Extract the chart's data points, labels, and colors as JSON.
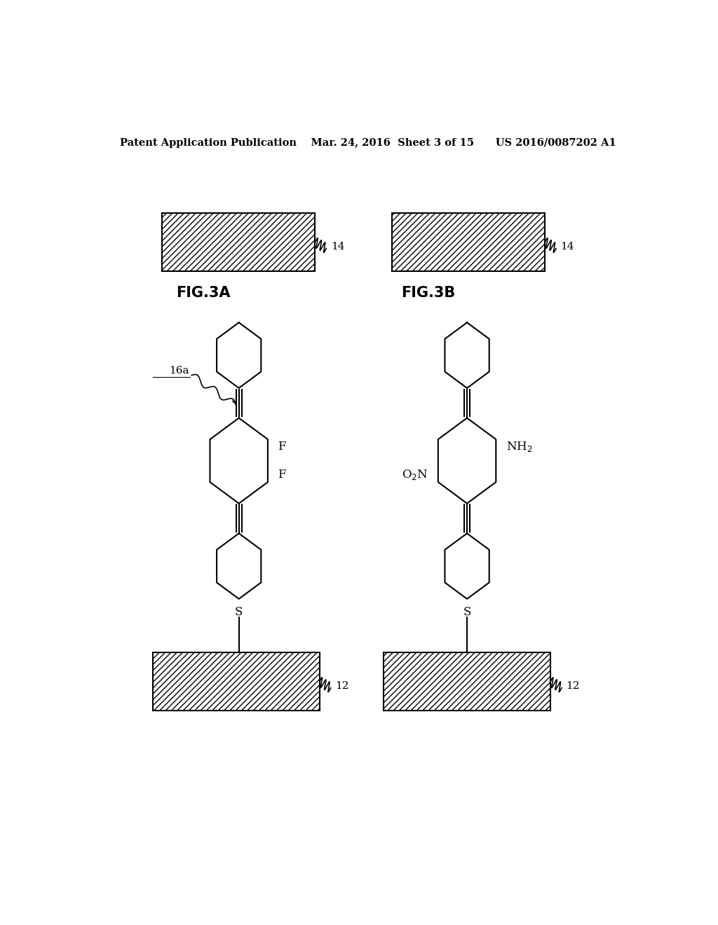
{
  "background_color": "#ffffff",
  "header_text": "Patent Application Publication    Mar. 24, 2016  Sheet 3 of 15      US 2016/0087202 A1",
  "fig3a_label": "FIG.3A",
  "fig3b_label": "FIG.3B",
  "label_14_text": "14",
  "label_12_text": "12",
  "label_16a_text": "16a",
  "hatch_pattern": "////",
  "line_color": "#000000"
}
